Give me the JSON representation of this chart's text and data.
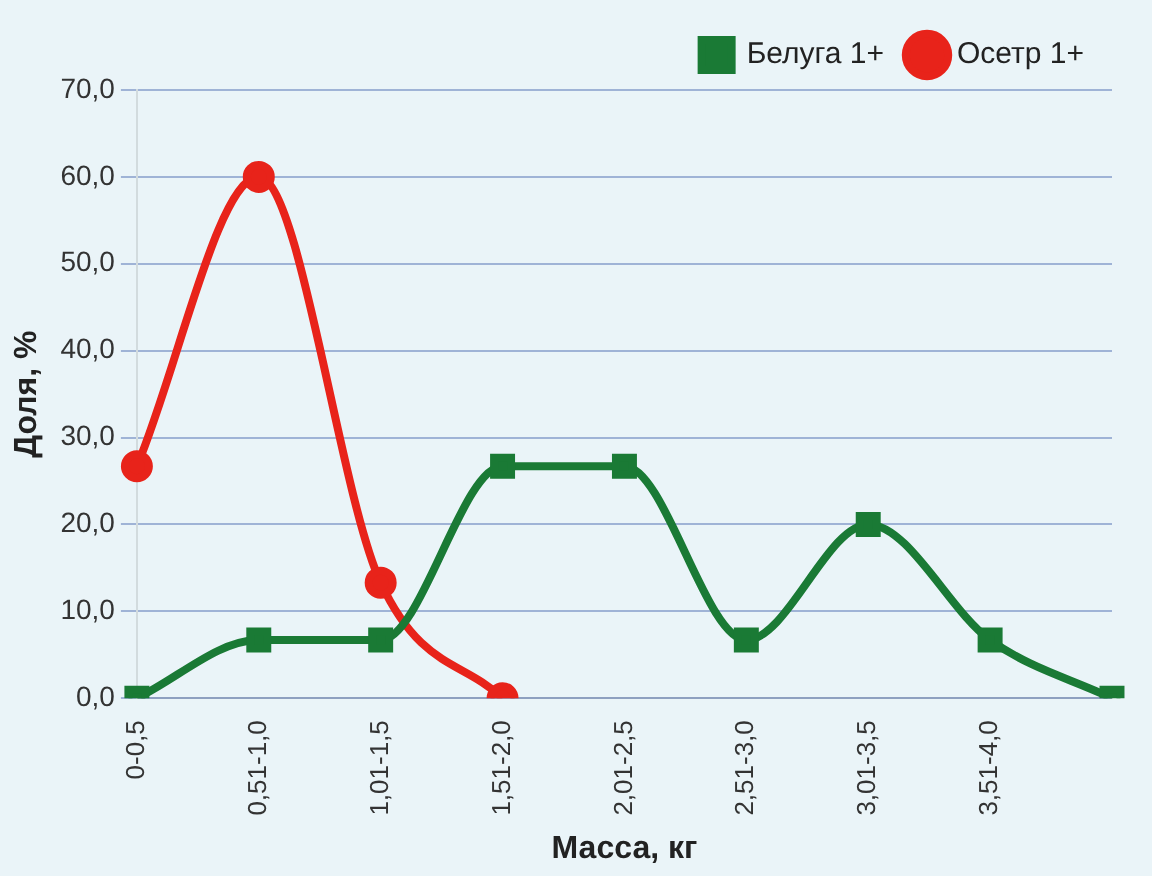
{
  "chart_data": {
    "type": "line",
    "xlabel": "Масса, кг",
    "ylabel": "Доля, %",
    "categories": [
      "0-0,5",
      "0,51-1,0",
      "1,01-1,5",
      "1,51-2,0",
      "2,01-2,5",
      "2,51-3,0",
      "3,01-3,5",
      "3,51-4,0",
      null
    ],
    "series": [
      {
        "name": "Белуга 1+",
        "color": "#1a7a35",
        "marker": "square",
        "values": [
          0,
          6.7,
          6.7,
          26.7,
          26.7,
          6.7,
          20,
          6.7,
          0
        ]
      },
      {
        "name": "Осетр 1+",
        "color": "#e8231a",
        "marker": "circle",
        "values": [
          26.7,
          60,
          13.3,
          0,
          null,
          null,
          null,
          null,
          null
        ]
      }
    ],
    "ylim": [
      0,
      70
    ],
    "yticks": [
      {
        "value": 0,
        "label": "0,0"
      },
      {
        "value": 10,
        "label": "10,0"
      },
      {
        "value": 20,
        "label": "20,0"
      },
      {
        "value": 30,
        "label": "30,0"
      },
      {
        "value": 40,
        "label": "40,0"
      },
      {
        "value": 50,
        "label": "50,0"
      },
      {
        "value": 60,
        "label": "60,0"
      },
      {
        "value": 70,
        "label": "70,0"
      }
    ],
    "grid": "y",
    "legend": "top right"
  }
}
